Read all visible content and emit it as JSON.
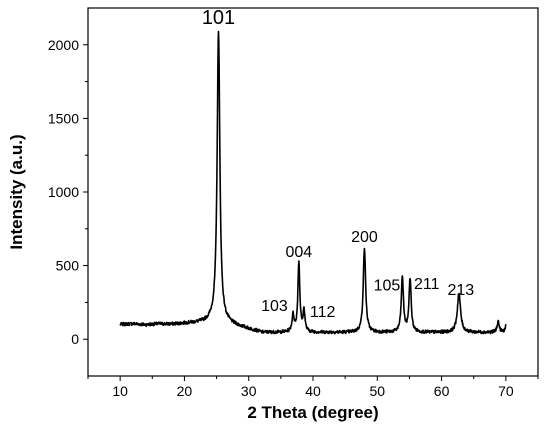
{
  "chart_data": {
    "type": "line",
    "title": "",
    "xlabel": "2 Theta (degree)",
    "ylabel": "Intensity (a.u.)",
    "xlim": [
      5,
      75
    ],
    "ylim": [
      -250,
      2250
    ],
    "xticks": [
      10,
      20,
      30,
      40,
      50,
      60,
      70
    ],
    "yticks": [
      0,
      500,
      1000,
      1500,
      2000
    ],
    "grid": false,
    "legend": "none",
    "line_color": "#000000",
    "baseline_points": [
      [
        10,
        100
      ],
      [
        12,
        105
      ],
      [
        14,
        98
      ],
      [
        16,
        104
      ],
      [
        18,
        102
      ],
      [
        20,
        108
      ],
      [
        22,
        112
      ],
      [
        23.5,
        118
      ],
      [
        24.6,
        130
      ]
    ],
    "peaks": [
      {
        "x": 25.3,
        "y": 2100,
        "width": 0.25
      },
      {
        "x": 36.9,
        "y": 160,
        "width": 0.2
      },
      {
        "x": 37.8,
        "y": 520,
        "width": 0.18
      },
      {
        "x": 38.6,
        "y": 190,
        "width": 0.18
      },
      {
        "x": 48.0,
        "y": 620,
        "width": 0.22
      },
      {
        "x": 53.9,
        "y": 420,
        "width": 0.2
      },
      {
        "x": 55.1,
        "y": 410,
        "width": 0.2
      },
      {
        "x": 62.7,
        "y": 310,
        "width": 0.3
      },
      {
        "x": 68.8,
        "y": 120,
        "width": 0.2
      },
      {
        "x": 70.1,
        "y": 100,
        "width": 0.2
      }
    ],
    "peak_labels": [
      {
        "text": "101",
        "x": 25.3,
        "y": 2140,
        "size": 20
      },
      {
        "text": "004",
        "x": 37.8,
        "y": 560,
        "size": 16
      },
      {
        "text": "200",
        "x": 48.0,
        "y": 660,
        "size": 16
      },
      {
        "text": "103",
        "x": 34.0,
        "y": 190,
        "size": 16
      },
      {
        "text": "112",
        "x": 41.5,
        "y": 150,
        "size": 16
      },
      {
        "text": "105",
        "x": 51.5,
        "y": 330,
        "size": 16
      },
      {
        "text": "211",
        "x": 57.7,
        "y": 340,
        "size": 16
      },
      {
        "text": "213",
        "x": 63.0,
        "y": 300,
        "size": 16
      }
    ]
  }
}
